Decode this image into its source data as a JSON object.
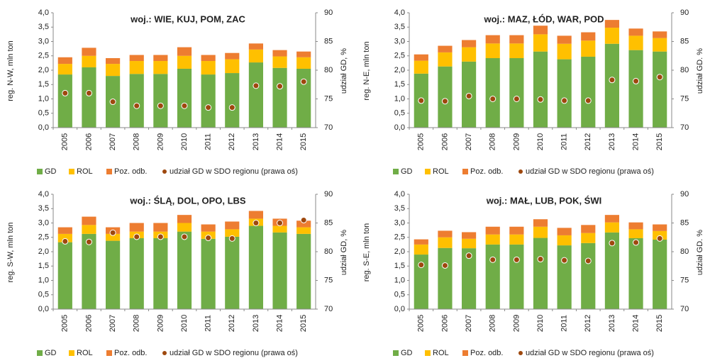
{
  "chart_data": [
    {
      "type": "bar",
      "stacked": true,
      "title": "woj.: WIE, KUJ, POM, ZAC",
      "ylabel": "reg. N-W, mln ton",
      "y2label": "udział GD, %",
      "categories": [
        "2005",
        "2006",
        "2007",
        "2008",
        "2009",
        "2010",
        "2011",
        "2012",
        "2013",
        "2014",
        "2015"
      ],
      "series": [
        {
          "name": "GD",
          "color": "#70ad47",
          "values": [
            1.85,
            2.1,
            1.8,
            1.87,
            1.87,
            2.05,
            1.85,
            1.9,
            2.27,
            2.08,
            2.05
          ]
        },
        {
          "name": "ROL",
          "color": "#ffc000",
          "values": [
            0.37,
            0.4,
            0.42,
            0.45,
            0.45,
            0.45,
            0.47,
            0.48,
            0.45,
            0.4,
            0.4
          ]
        },
        {
          "name": "Poz. odb.",
          "color": "#ed7d31",
          "values": [
            0.23,
            0.28,
            0.2,
            0.21,
            0.21,
            0.3,
            0.21,
            0.22,
            0.21,
            0.22,
            0.2
          ]
        },
        {
          "name": "udział GD w SDO regionu (prawa oś)",
          "color": "#9e480e",
          "axis": "y2",
          "values": [
            76,
            76,
            74.5,
            73.8,
            73.8,
            73.8,
            73.5,
            73.5,
            77.3,
            77.2,
            78
          ]
        }
      ],
      "ylim": [
        0,
        4
      ],
      "yticks": [
        {
          "value": 0,
          "label": "0,0"
        },
        {
          "value": 0.5,
          "label": "0,5"
        },
        {
          "value": 1,
          "label": "1,0"
        },
        {
          "value": 1.5,
          "label": "1,5"
        },
        {
          "value": 2,
          "label": "2,0"
        },
        {
          "value": 2.5,
          "label": "2,5"
        },
        {
          "value": 3,
          "label": "3,0"
        },
        {
          "value": 3.5,
          "label": "3,5"
        },
        {
          "value": 4,
          "label": "4,0"
        }
      ],
      "y2lim": [
        70,
        90
      ],
      "y2ticks": [
        70,
        75,
        80,
        85,
        90
      ]
    },
    {
      "type": "bar",
      "stacked": true,
      "title": "woj.: MAZ, ŁÓD, WAR, POD",
      "ylabel": "reg. N-E, mln ton",
      "y2label": "udział GD. %",
      "categories": [
        "2005",
        "2006",
        "2007",
        "2008",
        "2009",
        "2010",
        "2011",
        "2012",
        "2013",
        "2014",
        "2015"
      ],
      "series": [
        {
          "name": "GD",
          "color": "#70ad47",
          "values": [
            1.88,
            2.13,
            2.3,
            2.42,
            2.42,
            2.65,
            2.38,
            2.47,
            2.92,
            2.7,
            2.65
          ]
        },
        {
          "name": "ROL",
          "color": "#ffc000",
          "values": [
            0.45,
            0.49,
            0.5,
            0.51,
            0.51,
            0.6,
            0.54,
            0.56,
            0.56,
            0.5,
            0.47
          ]
        },
        {
          "name": "Poz. odb.",
          "color": "#ed7d31",
          "values": [
            0.22,
            0.23,
            0.25,
            0.29,
            0.29,
            0.3,
            0.28,
            0.29,
            0.27,
            0.25,
            0.23
          ]
        },
        {
          "name": "udział GD w SDO regionu (prawa oś)",
          "color": "#9e480e",
          "axis": "y2",
          "values": [
            74.7,
            74.6,
            75.5,
            75,
            75,
            74.9,
            74.7,
            74.7,
            78.3,
            78.1,
            78.8
          ]
        }
      ],
      "ylim": [
        0,
        4
      ],
      "yticks": [
        {
          "value": 0,
          "label": "0,0"
        },
        {
          "value": 0.5,
          "label": "0,5"
        },
        {
          "value": 1,
          "label": "1,0"
        },
        {
          "value": 1.5,
          "label": "1,5"
        },
        {
          "value": 2,
          "label": "2,0"
        },
        {
          "value": 2.5,
          "label": "2,5"
        },
        {
          "value": 3,
          "label": "3,0"
        },
        {
          "value": 3.5,
          "label": "3,5"
        },
        {
          "value": 4,
          "label": "4,0"
        }
      ],
      "y2lim": [
        70,
        90
      ],
      "y2ticks": [
        70,
        75,
        80,
        85,
        90
      ]
    },
    {
      "type": "bar",
      "stacked": true,
      "title": "woj.: ŚLĄ, DOL, OPO, LBS",
      "ylabel": "reg. S-W, mln ton",
      "y2label": "udział GD, %",
      "categories": [
        "2005",
        "2006",
        "2007",
        "2008",
        "2009",
        "2010",
        "2011",
        "2012",
        "2013",
        "2014",
        "2015"
      ],
      "series": [
        {
          "name": "GD",
          "color": "#70ad47",
          "values": [
            2.33,
            2.62,
            2.38,
            2.47,
            2.47,
            2.7,
            2.45,
            2.52,
            2.9,
            2.67,
            2.62
          ]
        },
        {
          "name": "ROL",
          "color": "#ffc000",
          "values": [
            0.29,
            0.31,
            0.24,
            0.23,
            0.23,
            0.3,
            0.25,
            0.26,
            0.25,
            0.23,
            0.23
          ]
        },
        {
          "name": "Poz. odb.",
          "color": "#ed7d31",
          "values": [
            0.23,
            0.29,
            0.23,
            0.3,
            0.3,
            0.28,
            0.25,
            0.27,
            0.27,
            0.25,
            0.23
          ]
        },
        {
          "name": "udział GD w SDO regionu (prawa oś)",
          "color": "#9e480e",
          "axis": "y2",
          "values": [
            81.8,
            81.7,
            83.3,
            82.6,
            82.6,
            82.6,
            82.4,
            82.3,
            85,
            85,
            85.5
          ]
        }
      ],
      "ylim": [
        0,
        4
      ],
      "yticks": [
        {
          "value": 0,
          "label": "0,0"
        },
        {
          "value": 0.5,
          "label": "0,5"
        },
        {
          "value": 1,
          "label": "1,0"
        },
        {
          "value": 1.5,
          "label": "1,5"
        },
        {
          "value": 2,
          "label": "2,0"
        },
        {
          "value": 2.5,
          "label": "2,5"
        },
        {
          "value": 3,
          "label": "3,0"
        },
        {
          "value": 3.5,
          "label": "3,5"
        },
        {
          "value": 4,
          "label": "4,0"
        }
      ],
      "y2lim": [
        70,
        90
      ],
      "y2ticks": [
        70,
        75,
        80,
        85,
        90
      ]
    },
    {
      "type": "bar",
      "stacked": true,
      "title": "woj.: MAŁ, LUB, POK, ŚWI",
      "ylabel": "reg. S-E, mln ton",
      "y2label": "udział GD. %",
      "categories": [
        "2005",
        "2006",
        "2007",
        "2008",
        "2009",
        "2010",
        "2011",
        "2012",
        "2013",
        "2014",
        "2015"
      ],
      "series": [
        {
          "name": "GD",
          "color": "#70ad47",
          "values": [
            1.9,
            2.13,
            2.12,
            2.25,
            2.25,
            2.48,
            2.22,
            2.3,
            2.67,
            2.47,
            2.42
          ]
        },
        {
          "name": "ROL",
          "color": "#ffc000",
          "values": [
            0.35,
            0.37,
            0.33,
            0.35,
            0.35,
            0.39,
            0.35,
            0.35,
            0.35,
            0.31,
            0.3
          ]
        },
        {
          "name": "Poz. odb.",
          "color": "#ed7d31",
          "values": [
            0.18,
            0.23,
            0.23,
            0.27,
            0.27,
            0.26,
            0.26,
            0.28,
            0.26,
            0.24,
            0.23
          ]
        },
        {
          "name": "udział GD w SDO regionu (prawa oś)",
          "color": "#9e480e",
          "axis": "y2",
          "values": [
            77.7,
            77.6,
            79.3,
            78.6,
            78.6,
            78.7,
            78.5,
            78.4,
            81.5,
            81.6,
            82.3
          ]
        }
      ],
      "ylim": [
        0,
        4
      ],
      "yticks": [
        {
          "value": 0,
          "label": "0,0"
        },
        {
          "value": 0.5,
          "label": "0,5"
        },
        {
          "value": 1,
          "label": "1,0"
        },
        {
          "value": 1.5,
          "label": "1,5"
        },
        {
          "value": 2,
          "label": "2,0"
        },
        {
          "value": 2.5,
          "label": "2,5"
        },
        {
          "value": 3,
          "label": "3,0"
        },
        {
          "value": 3.5,
          "label": "3,5"
        },
        {
          "value": 4,
          "label": "4,0"
        }
      ],
      "y2lim": [
        70,
        90
      ],
      "y2ticks": [
        70,
        75,
        80,
        85,
        90
      ]
    }
  ]
}
